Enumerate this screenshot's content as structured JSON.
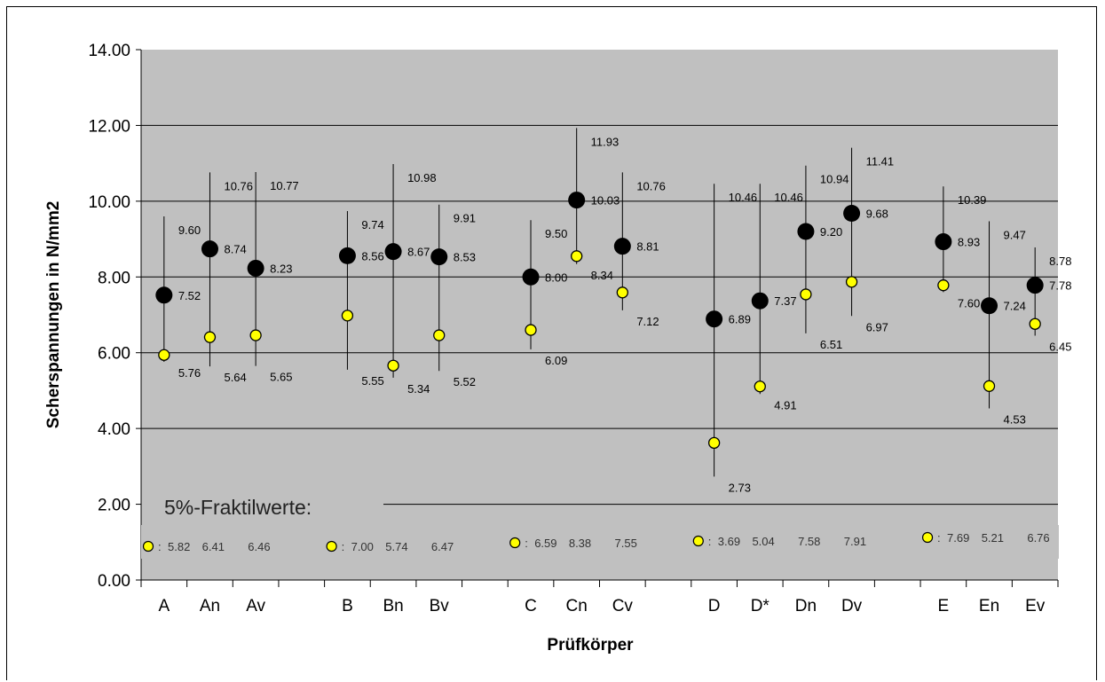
{
  "chart_data": {
    "type": "scatter",
    "xlabel": "Prüfkörper",
    "ylabel": "Scherspannungen in N/mm2",
    "ylim": [
      0,
      14
    ],
    "yticks": [
      "0.00",
      "2.00",
      "4.00",
      "6.00",
      "8.00",
      "10.00",
      "12.00",
      "14.00"
    ],
    "grid": true,
    "categories": [
      "A",
      "An",
      "Av",
      "",
      "B",
      "Bn",
      "Bv",
      "",
      "C",
      "Cn",
      "Cv",
      "",
      "D",
      "D*",
      "Dn",
      "Dv",
      "",
      "E",
      "En",
      "Ev"
    ],
    "series": [
      {
        "marker": "black-circle",
        "values": [
          7.52,
          8.74,
          8.23,
          null,
          8.56,
          8.67,
          8.53,
          null,
          8.0,
          10.03,
          8.81,
          null,
          6.89,
          7.37,
          9.2,
          9.68,
          null,
          8.93,
          7.24,
          7.78
        ],
        "labels": [
          "7.52",
          "8.74",
          "8.23",
          "",
          "8.56",
          "8.67",
          "8.53",
          "",
          "8.00",
          "10.03",
          "8.81",
          "",
          "6.89",
          "7.37",
          "9.20",
          "9.68",
          "",
          "8.93",
          "7.24",
          "7.78"
        ]
      },
      {
        "marker": "yellow-circle",
        "values": [
          5.94,
          6.41,
          6.46,
          null,
          6.98,
          5.66,
          6.46,
          null,
          6.6,
          8.55,
          7.59,
          null,
          3.62,
          5.11,
          7.54,
          7.87,
          null,
          7.78,
          5.12,
          6.76
        ]
      }
    ],
    "ranges": {
      "max": [
        9.6,
        10.76,
        10.77,
        null,
        9.74,
        10.98,
        9.91,
        null,
        9.5,
        11.93,
        10.76,
        null,
        10.46,
        10.46,
        10.94,
        11.41,
        null,
        10.39,
        9.47,
        8.78
      ],
      "min": [
        5.76,
        5.64,
        5.65,
        null,
        5.55,
        5.34,
        5.52,
        null,
        6.09,
        8.34,
        7.12,
        null,
        2.73,
        4.91,
        6.51,
        6.97,
        null,
        7.6,
        4.53,
        6.45
      ],
      "max_labels": [
        "9.60",
        "10.76",
        "10.77",
        "",
        "9.74",
        "10.98",
        "9.91",
        "",
        "9.50",
        "11.93",
        "10.76",
        "",
        "10.46",
        "10.46",
        "10.94",
        "11.41",
        "",
        "10.39",
        "9.47",
        "8.78"
      ],
      "min_labels": [
        "5.76",
        "5.64",
        "5.65",
        "",
        "5.55",
        "5.34",
        "5.52",
        "",
        "6.09",
        "8.34",
        "7.12",
        "",
        "2.73",
        "4.91",
        "6.51",
        "6.97",
        "",
        "7.60",
        "4.53",
        "6.45"
      ]
    },
    "fraktil": {
      "title": "5%-Fraktilwerte:",
      "groups": [
        {
          "values": [
            "5.82",
            "6.41",
            "6.46"
          ],
          "prefix": ":"
        },
        {
          "values": [
            "7.00",
            "5.74",
            "6.47"
          ],
          "prefix": ":"
        },
        {
          "values": [
            "6.59",
            "8.38",
            "7.55"
          ],
          "prefix": ":"
        },
        {
          "values": [
            "3.69",
            "5.04",
            "7.58",
            "7.91"
          ],
          "prefix": ":"
        },
        {
          "values": [
            "7.69",
            "5.21",
            "6.76"
          ],
          "prefix": ":"
        }
      ]
    },
    "colors": {
      "plot_bg": "#c0c0c0",
      "grid": "#000000",
      "mean_marker": "#000000",
      "fraktil_marker": "#ffff00"
    }
  }
}
